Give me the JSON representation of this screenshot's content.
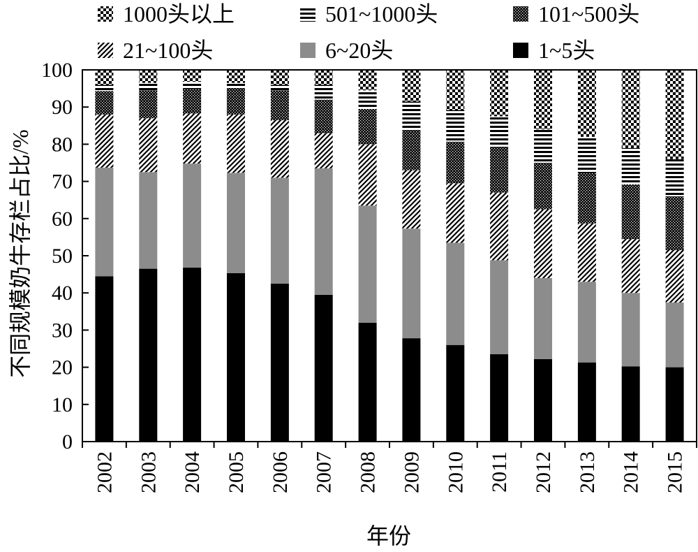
{
  "chart_data": {
    "type": "bar",
    "stacked": true,
    "xlabel": "年份",
    "ylabel": "不同规模奶牛存栏占比/%",
    "ylim": [
      0,
      100
    ],
    "yticks": [
      0,
      10,
      20,
      30,
      40,
      50,
      60,
      70,
      80,
      90,
      100
    ],
    "grid": false,
    "legend_position": "top",
    "categories": [
      "2002",
      "2003",
      "2004",
      "2005",
      "2006",
      "2007",
      "2008",
      "2009",
      "2010",
      "2011",
      "2012",
      "2013",
      "2014",
      "2015"
    ],
    "series": [
      {
        "name": "1~5头",
        "pattern": "solid-black",
        "values": [
          44.5,
          46.5,
          46.8,
          45.3,
          42.5,
          39.5,
          32.0,
          27.8,
          26.0,
          23.5,
          22.2,
          21.3,
          20.2,
          20.0
        ]
      },
      {
        "name": "6~20头",
        "pattern": "solid-gray",
        "values": [
          29.2,
          26.0,
          28.0,
          27.0,
          28.5,
          34.0,
          31.5,
          29.5,
          27.5,
          25.3,
          21.8,
          21.7,
          19.8,
          17.4
        ]
      },
      {
        "name": "21~100头",
        "pattern": "diagonal-hatch",
        "values": [
          14.3,
          14.5,
          13.5,
          15.7,
          15.5,
          9.5,
          16.5,
          15.7,
          16.0,
          18.2,
          18.5,
          15.7,
          14.5,
          14.1
        ]
      },
      {
        "name": "101~500头",
        "pattern": "dots",
        "values": [
          6.3,
          7.5,
          6.5,
          7.0,
          8.0,
          9.0,
          9.5,
          10.7,
          11.2,
          12.2,
          12.5,
          13.5,
          14.7,
          14.5
        ]
      },
      {
        "name": "501~1000头",
        "pattern": "horizontal-lines",
        "values": [
          1.7,
          2.0,
          2.0,
          1.5,
          1.5,
          4.0,
          5.0,
          7.8,
          8.5,
          8.3,
          9.0,
          9.8,
          9.8,
          10.0
        ]
      },
      {
        "name": "1000头以上",
        "pattern": "checker",
        "values": [
          4.0,
          3.5,
          3.2,
          3.5,
          4.0,
          4.0,
          5.5,
          8.5,
          10.8,
          12.5,
          16.0,
          18.0,
          21.0,
          24.0
        ]
      }
    ]
  },
  "legend": {
    "items": [
      "1000头以上",
      "501~1000头",
      "101~500头",
      "21~100头",
      "6~20头",
      "1~5头"
    ]
  }
}
